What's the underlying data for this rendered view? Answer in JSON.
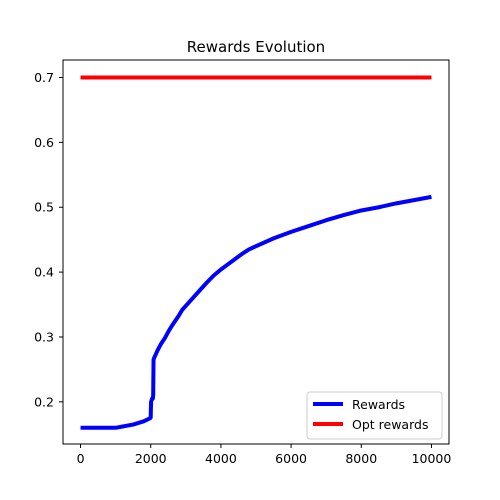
{
  "chart_data": {
    "type": "line",
    "title": "Rewards Evolution",
    "xlabel": "",
    "ylabel": "",
    "xlim": [
      -500,
      10500
    ],
    "ylim": [
      0.135,
      0.727
    ],
    "xticks": [
      0,
      2000,
      4000,
      6000,
      8000,
      10000
    ],
    "xtick_labels": [
      "0",
      "2000",
      "4000",
      "6000",
      "8000",
      "10000"
    ],
    "yticks": [
      0.2,
      0.3,
      0.4,
      0.5,
      0.6,
      0.7
    ],
    "ytick_labels": [
      "0.2",
      "0.3",
      "0.4",
      "0.5",
      "0.6",
      "0.7"
    ],
    "grid": false,
    "legend_position": "lower-right",
    "series": [
      {
        "name": "Rewards",
        "color": "#0000ff",
        "x": [
          0,
          500,
          1000,
          1200,
          1500,
          1800,
          1990,
          2000,
          2005,
          2010,
          2040,
          2060,
          2070,
          2080,
          2100,
          2200,
          2300,
          2400,
          2500,
          2600,
          2700,
          2800,
          2900,
          3000,
          3200,
          3400,
          3600,
          3800,
          4000,
          4200,
          4400,
          4600,
          4800,
          5000,
          5500,
          6000,
          6500,
          7000,
          7500,
          8000,
          8500,
          9000,
          9500,
          10000
        ],
        "y": [
          0.16,
          0.16,
          0.16,
          0.162,
          0.165,
          0.17,
          0.175,
          0.176,
          0.19,
          0.2,
          0.205,
          0.205,
          0.21,
          0.265,
          0.268,
          0.28,
          0.29,
          0.298,
          0.308,
          0.317,
          0.325,
          0.333,
          0.342,
          0.348,
          0.36,
          0.372,
          0.384,
          0.395,
          0.404,
          0.412,
          0.42,
          0.428,
          0.435,
          0.44,
          0.452,
          0.462,
          0.471,
          0.48,
          0.488,
          0.495,
          0.5,
          0.506,
          0.511,
          0.516
        ]
      },
      {
        "name": "Opt rewards",
        "color": "#ff0000",
        "x": [
          0,
          10000
        ],
        "y": [
          0.7,
          0.7
        ]
      }
    ]
  }
}
